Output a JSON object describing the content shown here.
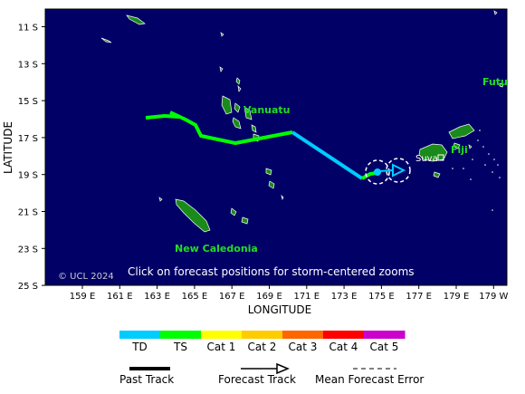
{
  "map": {
    "background": "#000066",
    "land_color": "#1a8a1a",
    "copyright": "© UCL 2024",
    "notice": "Click on forecast positions for storm-centered zooms",
    "xlabel": "LONGITUDE",
    "ylabel": "LATITUDE",
    "lat_ticks": [
      "11 S",
      "13 S",
      "15 S",
      "17 S",
      "19 S",
      "21 S",
      "23 S",
      "25 S"
    ],
    "lon_ticks": [
      "159 E",
      "161 E",
      "163 E",
      "165 E",
      "167 E",
      "169 E",
      "171 E",
      "173 E",
      "175 E",
      "177 E",
      "179 E",
      "179 W"
    ],
    "places": {
      "vanuatu": "Vanuatu",
      "new_caledonia": "New Caledonia",
      "fiji": "Fiji",
      "futuna": "Futu",
      "suva": "Suva"
    }
  },
  "legend": {
    "categories": [
      {
        "label": "TD",
        "color": "#00ccff"
      },
      {
        "label": "TS",
        "color": "#00ff00"
      },
      {
        "label": "Cat 1",
        "color": "#ffff00"
      },
      {
        "label": "Cat 2",
        "color": "#ffcc00"
      },
      {
        "label": "Cat 3",
        "color": "#ff6600"
      },
      {
        "label": "Cat 4",
        "color": "#ff0000"
      },
      {
        "label": "Cat 5",
        "color": "#cc00cc"
      }
    ],
    "past_track": "Past Track",
    "forecast_track": "Forecast Track",
    "mean_error": "Mean Forecast Error"
  }
}
